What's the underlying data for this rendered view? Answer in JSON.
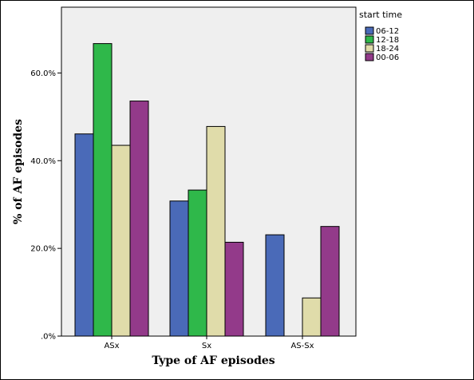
{
  "chart_data": {
    "type": "bar",
    "title": "",
    "xlabel": "Type of AF episodes",
    "ylabel": "% of AF episodes",
    "categories": [
      "ASx",
      "Sx",
      "AS-Sx"
    ],
    "ylim": [
      0,
      75
    ],
    "yticks": [
      {
        "value": 0,
        "label": ".0%"
      },
      {
        "value": 20,
        "label": "20.0%"
      },
      {
        "value": 40,
        "label": "40.0%"
      },
      {
        "value": 60,
        "label": "60.0%"
      }
    ],
    "legend": {
      "title": "start  time",
      "position": "right"
    },
    "series": [
      {
        "name": "06-12",
        "color": "#4a6ab8",
        "values": [
          46.1,
          30.8,
          23.1
        ]
      },
      {
        "name": "12-18",
        "color": "#2fb84a",
        "values": [
          66.7,
          33.3,
          0
        ]
      },
      {
        "name": "18-24",
        "color": "#e0dcaa",
        "values": [
          43.5,
          47.8,
          8.7
        ]
      },
      {
        "name": "00-06",
        "color": "#933a8a",
        "values": [
          53.6,
          21.4,
          25.0
        ]
      }
    ],
    "grid": false,
    "plot_background": "#efefef"
  }
}
